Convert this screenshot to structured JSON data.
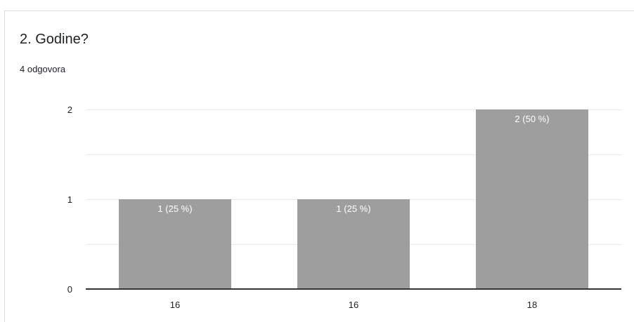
{
  "question": {
    "title": "2. Godine?",
    "responses": "4 odgovora"
  },
  "colors": {
    "bar": "#9e9e9e",
    "axis": "#333333",
    "grid": "#e8eaed",
    "text": "#202124",
    "data_label": "#ffffff"
  },
  "chart_data": {
    "type": "bar",
    "categories": [
      "16",
      "16",
      "18"
    ],
    "values": [
      1,
      1,
      2
    ],
    "data_labels": [
      "1 (25 %)",
      "1 (25 %)",
      "2 (50 %)"
    ],
    "y_ticks": [
      "0",
      "1",
      "2"
    ],
    "ylim": [
      0,
      2
    ],
    "grid": true,
    "legend": "none"
  }
}
